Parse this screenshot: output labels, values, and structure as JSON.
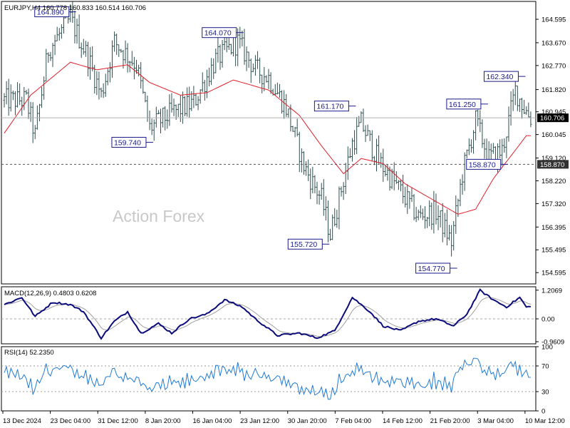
{
  "chart_data": {
    "type": "ohlc",
    "symbol_header": "EURJPY,H4  160.778 160.833 160.514 160.706",
    "watermark": "Action Forex",
    "colors": {
      "bars": "#2f4f4f",
      "ma": "#e0202a",
      "macd": "#0b0b7a",
      "signal": "#a0a0a0",
      "rsi": "#1e7ad6",
      "label_border": "#1a1a8c",
      "label_text": "#1a1a8c",
      "price_tag_bg": "#000000",
      "price_tag_text": "#ffffff"
    },
    "price_axis": {
      "ticks": [
        "164.595",
        "163.670",
        "162.770",
        "161.820",
        "160.945",
        "160.045",
        "159.120",
        "158.220",
        "157.320",
        "156.395",
        "155.495",
        "154.595"
      ]
    },
    "current_price": "160.706",
    "support_level": "158.870",
    "x_axis_labels": [
      "13 Dec 2024",
      "23 Dec 04:00",
      "31 Dec 12:00",
      "8 Jan 20:00",
      "16 Jan 04:00",
      "23 Jan 12:00",
      "30 Jan 20:00",
      "7 Feb 04:00",
      "14 Feb 12:00",
      "21 Feb 20:00",
      "3 Mar 04:00",
      "10 Mar 12:00"
    ],
    "annotations": [
      {
        "text": "164.890",
        "bar": 30,
        "side": "left",
        "price": 164.89
      },
      {
        "text": "159.740",
        "bar": 65,
        "side": "left",
        "price": 159.74
      },
      {
        "text": "164.070",
        "bar": 106,
        "side": "left",
        "price": 164.07
      },
      {
        "text": "161.170",
        "bar": 157,
        "side": "left",
        "price": 161.17
      },
      {
        "text": "155.720",
        "bar": 145,
        "side": "left",
        "price": 155.72
      },
      {
        "text": "154.770",
        "bar": 203,
        "side": "left",
        "price": 154.77
      },
      {
        "text": "161.250",
        "bar": 217,
        "side": "left",
        "price": 161.25
      },
      {
        "text": "158.870",
        "bar": 226,
        "side": "left",
        "price": 158.87
      },
      {
        "text": "162.340",
        "bar": 234,
        "side": "left",
        "price": 162.34
      }
    ],
    "macd": {
      "header": "MACD(12,26,9) 0.4803 0.6208",
      "ticks": [
        "1.2069",
        "0.00",
        "-0.9609"
      ],
      "anchors": [
        [
          0,
          0.6
        ],
        [
          8,
          0.9
        ],
        [
          14,
          0.1
        ],
        [
          22,
          0.7
        ],
        [
          30,
          0.6
        ],
        [
          36,
          0.3
        ],
        [
          44,
          -0.8
        ],
        [
          50,
          -0.1
        ],
        [
          56,
          0.3
        ],
        [
          62,
          -0.6
        ],
        [
          70,
          -0.2
        ],
        [
          76,
          -0.6
        ],
        [
          84,
          0.0
        ],
        [
          92,
          0.2
        ],
        [
          100,
          0.8
        ],
        [
          108,
          0.5
        ],
        [
          114,
          0.0
        ],
        [
          124,
          -0.7
        ],
        [
          134,
          -0.6
        ],
        [
          142,
          -0.8
        ],
        [
          150,
          -0.5
        ],
        [
          158,
          0.9
        ],
        [
          166,
          0.3
        ],
        [
          172,
          -0.3
        ],
        [
          180,
          -0.5
        ],
        [
          188,
          -0.1
        ],
        [
          196,
          0.0
        ],
        [
          204,
          -0.3
        ],
        [
          210,
          0.2
        ],
        [
          216,
          1.2
        ],
        [
          222,
          0.8
        ],
        [
          228,
          0.5
        ],
        [
          234,
          0.9
        ],
        [
          237,
          0.5
        ]
      ]
    },
    "rsi": {
      "header": "RSI(14) 52.2350",
      "ticks": [
        "100",
        "70",
        "30",
        "0"
      ],
      "levels": [
        70,
        30
      ],
      "last": 52.235
    },
    "ma_anchors": [
      [
        0,
        160.1
      ],
      [
        12,
        161.6
      ],
      [
        30,
        162.9
      ],
      [
        42,
        162.6
      ],
      [
        56,
        162.8
      ],
      [
        66,
        162.1
      ],
      [
        80,
        161.6
      ],
      [
        92,
        161.7
      ],
      [
        104,
        162.2
      ],
      [
        120,
        161.8
      ],
      [
        134,
        160.8
      ],
      [
        144,
        159.6
      ],
      [
        154,
        158.5
      ],
      [
        162,
        159.1
      ],
      [
        172,
        158.9
      ],
      [
        182,
        158.1
      ],
      [
        194,
        157.5
      ],
      [
        206,
        156.9
      ],
      [
        214,
        157.1
      ],
      [
        222,
        158.3
      ],
      [
        230,
        159.2
      ],
      [
        237,
        160.0
      ]
    ],
    "price_anchors": [
      [
        0,
        161.4
      ],
      [
        10,
        161.4
      ],
      [
        14,
        160.0
      ],
      [
        20,
        163.4
      ],
      [
        30,
        164.6
      ],
      [
        38,
        163.1
      ],
      [
        44,
        161.6
      ],
      [
        50,
        163.7
      ],
      [
        60,
        162.8
      ],
      [
        66,
        160.3
      ],
      [
        76,
        160.9
      ],
      [
        86,
        161.3
      ],
      [
        96,
        163.0
      ],
      [
        106,
        163.7
      ],
      [
        114,
        162.6
      ],
      [
        120,
        162.3
      ],
      [
        128,
        161.1
      ],
      [
        136,
        158.8
      ],
      [
        144,
        157.5
      ],
      [
        148,
        156.1
      ],
      [
        158,
        159.7
      ],
      [
        162,
        160.5
      ],
      [
        170,
        159.0
      ],
      [
        180,
        157.8
      ],
      [
        188,
        156.8
      ],
      [
        196,
        157.0
      ],
      [
        203,
        155.8
      ],
      [
        208,
        158.5
      ],
      [
        214,
        160.6
      ],
      [
        220,
        159.1
      ],
      [
        226,
        159.4
      ],
      [
        232,
        161.8
      ],
      [
        236,
        161.1
      ],
      [
        239,
        160.7
      ]
    ]
  }
}
